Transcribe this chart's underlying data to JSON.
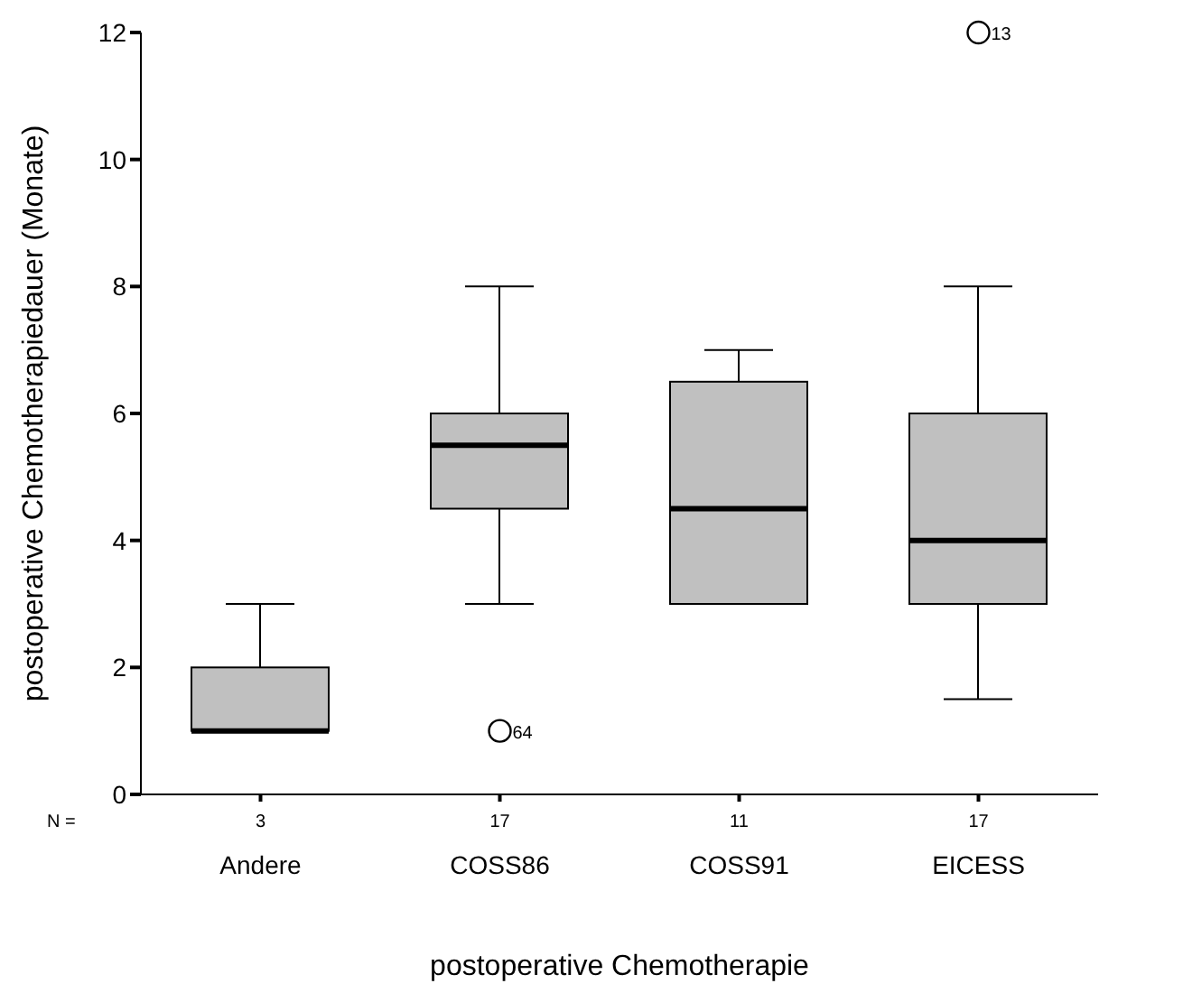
{
  "chart_data": {
    "type": "box",
    "xlabel": "postoperative Chemotherapie",
    "ylabel": "postoperative Chemotherapiedauer (Monate)",
    "categories": [
      "Andere",
      "COSS86",
      "COSS91",
      "EICESS"
    ],
    "color": "#c0c0c0",
    "boxes": [
      {
        "low": 1,
        "q1": 1,
        "median": 1,
        "q3": 2,
        "high": 3
      },
      {
        "low": 3,
        "q1": 4.5,
        "median": 5.5,
        "q3": 6,
        "high": 8,
        "outliers": [
          1
        ]
      },
      {
        "low": 3,
        "q1": 3,
        "median": 4.5,
        "q3": 6.5,
        "high": 7
      },
      {
        "low": 1.5,
        "q1": 3,
        "median": 4,
        "q3": 6,
        "high": 8,
        "outliers": [
          12
        ]
      }
    ],
    "ylim": [
      0,
      12
    ],
    "yticks": [
      0,
      2,
      4,
      6,
      8,
      10,
      12
    ],
    "grid": false,
    "legend": false,
    "annotations": [
      "N =",
      "3",
      "17",
      "11",
      "17",
      "64",
      "13"
    ]
  }
}
